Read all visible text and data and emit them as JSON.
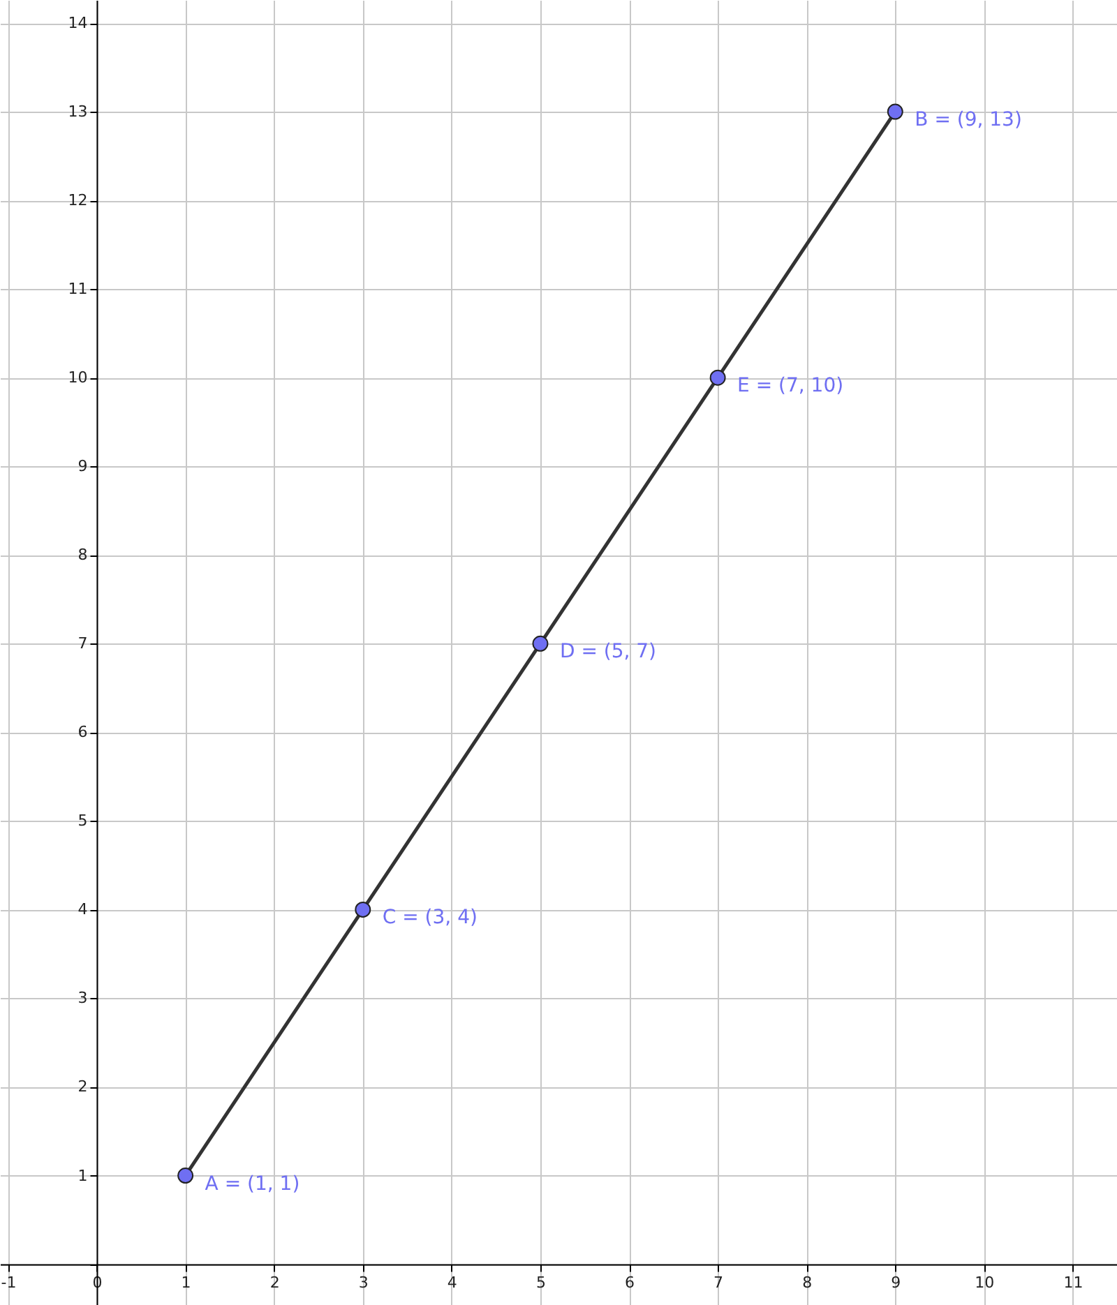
{
  "chart_data": {
    "type": "line",
    "x": [
      1,
      3,
      5,
      7,
      9
    ],
    "series": [
      {
        "color": "#333333",
        "values": [
          1,
          4,
          7,
          10,
          13
        ],
        "marker": "none"
      },
      {
        "type": "scatter",
        "color": "#6f6ff2",
        "values": [
          1,
          4,
          7,
          10,
          13
        ],
        "marker": "circle"
      }
    ],
    "annotations": [
      {
        "text": "A = (1, 1)",
        "x": 1,
        "y": 1
      },
      {
        "text": "C = (3, 4)",
        "x": 3,
        "y": 4
      },
      {
        "text": "D = (5, 7)",
        "x": 5,
        "y": 7
      },
      {
        "text": "E = (7, 10)",
        "x": 7,
        "y": 10
      },
      {
        "text": "B = (9, 13)",
        "x": 9,
        "y": 13
      }
    ],
    "xlim": [
      -1.09,
      11.5
    ],
    "ylim": [
      -0.46,
      14.26
    ],
    "xticks": [
      -1,
      0,
      1,
      2,
      3,
      4,
      5,
      6,
      7,
      8,
      9,
      10,
      11
    ],
    "yticks": [
      {
        "value": 0,
        "label": null
      },
      1,
      2,
      3,
      4,
      5,
      6,
      7,
      8,
      9,
      10,
      11,
      12,
      13,
      14
    ],
    "grid": true
  }
}
